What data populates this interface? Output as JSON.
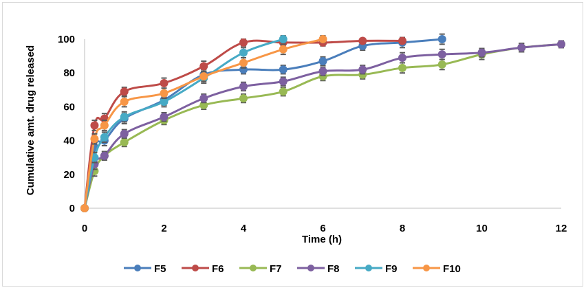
{
  "chart_data": {
    "type": "line",
    "title": "",
    "xlabel": "Time (h)",
    "ylabel": "Cumulative amt. drug released",
    "xlim": [
      0,
      12
    ],
    "ylim": [
      0,
      100
    ],
    "xticks": [
      0,
      2,
      4,
      6,
      8,
      10,
      12
    ],
    "yticks": [
      0,
      20,
      40,
      60,
      80,
      100
    ],
    "legend_position": "bottom",
    "grid": false,
    "series": [
      {
        "name": "F5",
        "color": "#4a7ebb",
        "x": [
          0,
          0.25,
          0.5,
          1,
          2,
          3,
          4,
          5,
          6,
          7,
          8,
          9
        ],
        "y": [
          0,
          36,
          40,
          53,
          64,
          79,
          82,
          82,
          87,
          96,
          98,
          100
        ],
        "err": [
          1,
          3,
          3,
          3,
          3,
          3,
          2.5,
          2.5,
          2.5,
          2.5,
          3,
          3
        ]
      },
      {
        "name": "F6",
        "color": "#be4b48",
        "x": [
          0,
          0.25,
          0.5,
          1,
          2,
          3,
          4,
          5,
          6,
          7,
          8
        ],
        "y": [
          0,
          49,
          53,
          69,
          74,
          84,
          98,
          98,
          98,
          99,
          99
        ],
        "err": [
          1,
          3,
          3,
          2.5,
          3,
          3,
          2,
          2,
          2,
          1.5,
          1.5
        ]
      },
      {
        "name": "F7",
        "color": "#98b954",
        "x": [
          0,
          0.25,
          0.5,
          1,
          2,
          3,
          4,
          5,
          6,
          7,
          8,
          9,
          10,
          11,
          12
        ],
        "y": [
          0,
          22,
          31,
          39,
          52,
          61,
          65,
          69,
          78,
          79,
          83,
          85,
          91,
          95,
          97
        ],
        "err": [
          1,
          3,
          2.5,
          2.5,
          2.5,
          2.5,
          2.5,
          2.5,
          2.5,
          2.5,
          3,
          3,
          3,
          2.5,
          2
        ]
      },
      {
        "name": "F8",
        "color": "#7d60a0",
        "x": [
          0,
          0.25,
          0.5,
          1,
          2,
          3,
          4,
          5,
          6,
          7,
          8,
          9,
          10,
          11,
          12
        ],
        "y": [
          0,
          26,
          31,
          44,
          54,
          65,
          72,
          75,
          81,
          82,
          89,
          91,
          92,
          95,
          97
        ],
        "err": [
          1,
          3,
          2.5,
          2.5,
          2.5,
          2.5,
          2.5,
          2.5,
          2.5,
          2.5,
          3,
          3,
          2.5,
          2.5,
          2
        ]
      },
      {
        "name": "F9",
        "color": "#46aac5",
        "x": [
          0,
          0.25,
          0.5,
          1,
          2,
          3,
          4,
          5
        ],
        "y": [
          0,
          30,
          42,
          54,
          63,
          77,
          92,
          100
        ],
        "err": [
          1,
          3,
          3,
          3,
          3,
          3,
          3,
          2
        ]
      },
      {
        "name": "F10",
        "color": "#f79646",
        "x": [
          0,
          0.25,
          0.5,
          1,
          2,
          3,
          4,
          5,
          6
        ],
        "y": [
          0,
          41,
          49,
          63,
          68,
          78,
          86,
          94,
          100
        ],
        "err": [
          1,
          3,
          3,
          3,
          3,
          3,
          3,
          3,
          2
        ]
      }
    ]
  }
}
